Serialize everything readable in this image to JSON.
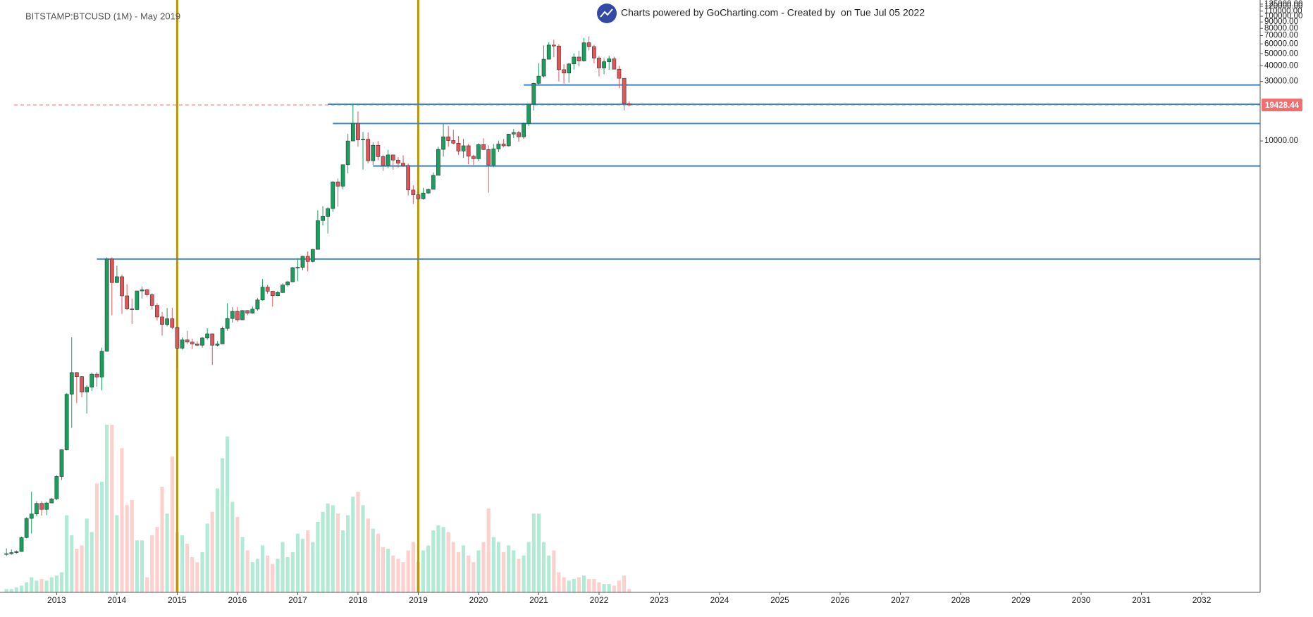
{
  "chart_data": {
    "type": "candlestick",
    "title": "BITSTAMP:BTCUSD (1M) - May 2019",
    "header": "Charts powered by GoCharting.com - Created by  on Tue Jul 05 2022",
    "log_scale": true,
    "grid": false,
    "x": [
      2012.167,
      2012.25,
      2012.333,
      2012.417,
      2012.5,
      2012.583,
      2012.667,
      2012.75,
      2012.833,
      2012.917,
      2013,
      2013.083,
      2013.167,
      2013.25,
      2013.333,
      2013.417,
      2013.5,
      2013.583,
      2013.667,
      2013.75,
      2013.833,
      2013.917,
      2014,
      2014.083,
      2014.167,
      2014.25,
      2014.333,
      2014.417,
      2014.5,
      2014.583,
      2014.667,
      2014.75,
      2014.833,
      2014.917,
      2015,
      2015.083,
      2015.167,
      2015.25,
      2015.333,
      2015.417,
      2015.5,
      2015.583,
      2015.667,
      2015.75,
      2015.833,
      2015.917,
      2016,
      2016.083,
      2016.167,
      2016.25,
      2016.333,
      2016.417,
      2016.5,
      2016.583,
      2016.667,
      2016.75,
      2016.833,
      2016.917,
      2017,
      2017.083,
      2017.167,
      2017.25,
      2017.333,
      2017.417,
      2017.5,
      2017.583,
      2017.667,
      2017.75,
      2017.833,
      2017.917,
      2018,
      2018.083,
      2018.167,
      2018.25,
      2018.333,
      2018.417,
      2018.5,
      2018.583,
      2018.667,
      2018.75,
      2018.833,
      2018.917,
      2019,
      2019.083,
      2019.167,
      2019.25,
      2019.333,
      2019.417,
      2019.5,
      2019.583,
      2019.667,
      2019.75,
      2019.833,
      2019.917,
      2020,
      2020.083,
      2020.167,
      2020.25,
      2020.333,
      2020.417,
      2020.5,
      2020.583,
      2020.667,
      2020.75,
      2020.833,
      2020.917,
      2021,
      2021.083,
      2021.167,
      2021.25,
      2021.333,
      2021.417,
      2021.5,
      2021.583,
      2021.667,
      2021.75,
      2021.833,
      2021.917,
      2022,
      2022.083,
      2022.167,
      2022.25,
      2022.333,
      2022.417,
      2022.5
    ],
    "open": [
      4.9,
      4.9,
      5.0,
      5.1,
      6.6,
      9.4,
      10.2,
      12.4,
      11.1,
      12.5,
      13.5,
      20.4,
      33.4,
      93,
      139,
      129,
      97,
      106,
      135,
      128,
      206,
      1129,
      732,
      815,
      573,
      450,
      445,
      627,
      640,
      585,
      480,
      388,
      338,
      375,
      320,
      218,
      254,
      244,
      236,
      230,
      263,
      284,
      230,
      236,
      314,
      377,
      430,
      368,
      437,
      416,
      448,
      531,
      673,
      624,
      575,
      609,
      700,
      742,
      964,
      970,
      1190,
      1080,
      1350,
      2300,
      2480,
      2870,
      4700,
      4340,
      6450,
      10000,
      13850,
      10200,
      10330,
      6930,
      9240,
      7490,
      6390,
      7730,
      7030,
      6630,
      6370,
      4040,
      3700,
      3440,
      3820,
      4100,
      5300,
      8560,
      10800,
      10080,
      9600,
      8300,
      9150,
      7540,
      7200,
      9350,
      8540,
      6420,
      8630,
      9450,
      9140,
      11350,
      11650,
      10780,
      13800,
      19700,
      28990,
      33100,
      45240,
      58800,
      57750,
      37300,
      35040,
      41460,
      47100,
      43820,
      61300,
      57000,
      46200,
      38480,
      43180,
      45540,
      37640,
      31800,
      19930
    ],
    "high": [
      5.4,
      5.3,
      5.2,
      6.7,
      9.6,
      15.4,
      12.9,
      12.9,
      12.8,
      13.7,
      20.9,
      33.5,
      95,
      266,
      140,
      130,
      110,
      139,
      140,
      220,
      1163,
      1163,
      1000,
      850,
      710,
      545,
      630,
      680,
      650,
      600,
      500,
      425,
      458,
      460,
      320,
      265,
      300,
      260,
      248,
      268,
      315,
      285,
      248,
      325,
      500,
      465,
      465,
      440,
      440,
      470,
      550,
      780,
      700,
      625,
      630,
      720,
      755,
      975,
      1150,
      1200,
      1300,
      1360,
      2780,
      3000,
      2950,
      4750,
      5000,
      6450,
      11400,
      19666,
      17250,
      11800,
      11700,
      9750,
      9990,
      7770,
      8500,
      7760,
      7410,
      7680,
      6580,
      4400,
      4100,
      4200,
      4150,
      5600,
      9000,
      13880,
      13200,
      12300,
      10950,
      10370,
      9500,
      7750,
      9580,
      10500,
      9190,
      9450,
      10070,
      10380,
      11420,
      12470,
      12070,
      14100,
      19860,
      29300,
      41950,
      58350,
      61800,
      64900,
      59600,
      41300,
      42300,
      50500,
      52900,
      67000,
      69000,
      59100,
      47990,
      45800,
      48200,
      47450,
      40000,
      31900,
      20750
    ],
    "low": [
      4.7,
      4.8,
      4.9,
      5.1,
      6.5,
      7.1,
      9.8,
      9.9,
      10.0,
      12.5,
      13.2,
      19.1,
      33,
      50,
      79,
      88,
      65,
      99,
      107,
      100,
      205,
      400,
      725,
      410,
      440,
      340,
      440,
      545,
      565,
      445,
      365,
      275,
      325,
      310,
      152,
      212,
      235,
      215,
      226,
      220,
      255,
      160,
      225,
      235,
      300,
      350,
      355,
      365,
      400,
      412,
      435,
      525,
      595,
      470,
      570,
      605,
      680,
      740,
      750,
      920,
      900,
      1060,
      1350,
      2100,
      1810,
      2700,
      2970,
      4100,
      5500,
      10000,
      9000,
      5900,
      6600,
      6420,
      7020,
      5750,
      6070,
      5880,
      6100,
      6200,
      3650,
      3120,
      3350,
      3380,
      3780,
      4080,
      5300,
      7500,
      9000,
      9400,
      7750,
      7300,
      6500,
      6430,
      6870,
      8450,
      3850,
      6150,
      8120,
      8950,
      8990,
      10540,
      9850,
      10400,
      13200,
      17600,
      28100,
      32300,
      45000,
      47000,
      30000,
      28800,
      29300,
      37400,
      39600,
      43300,
      53250,
      42000,
      32900,
      34300,
      37200,
      37600,
      26500,
      17600,
      18960
    ],
    "close": [
      4.9,
      5.0,
      5.1,
      6.6,
      9.4,
      10.2,
      12.4,
      11.1,
      12.5,
      13.5,
      20.4,
      33.4,
      93,
      139,
      129,
      97,
      106,
      135,
      128,
      206,
      1129,
      732,
      815,
      573,
      450,
      445,
      627,
      640,
      585,
      480,
      388,
      338,
      375,
      320,
      218,
      254,
      244,
      236,
      230,
      263,
      284,
      230,
      236,
      314,
      377,
      430,
      368,
      437,
      416,
      448,
      531,
      673,
      624,
      575,
      609,
      700,
      742,
      964,
      970,
      1190,
      1080,
      1350,
      2300,
      2480,
      2870,
      4700,
      4340,
      6450,
      10000,
      13850,
      10200,
      10330,
      6930,
      9240,
      7490,
      6390,
      7730,
      7030,
      6630,
      6370,
      4040,
      3700,
      3440,
      3820,
      4100,
      5300,
      8560,
      10800,
      10080,
      9600,
      8300,
      9150,
      7540,
      7200,
      9350,
      8540,
      6420,
      8630,
      9450,
      9140,
      11350,
      11650,
      10780,
      13800,
      19700,
      28990,
      33100,
      45240,
      58800,
      57750,
      37300,
      35040,
      41460,
      47100,
      43820,
      61300,
      57000,
      46200,
      38480,
      43180,
      45540,
      37640,
      31800,
      19930,
      19428.44
    ],
    "volume": [
      2,
      2,
      3,
      4,
      6,
      9,
      7,
      8,
      7,
      9,
      10,
      12,
      46,
      34,
      26,
      28,
      44,
      36,
      65,
      66,
      100,
      100,
      46,
      86,
      52,
      55,
      31,
      31,
      9,
      34,
      39,
      63,
      47,
      81,
      36,
      34,
      29,
      21,
      18,
      24,
      41,
      48,
      62,
      80,
      93,
      54,
      45,
      33,
      25,
      18,
      20,
      28,
      22,
      17,
      20,
      30,
      21,
      24,
      35,
      32,
      37,
      30,
      42,
      48,
      53,
      52,
      47,
      37,
      46,
      57,
      60,
      52,
      44,
      38,
      35,
      27,
      26,
      22,
      20,
      18,
      25,
      30,
      18,
      25,
      28,
      37,
      40,
      39,
      36,
      30,
      24,
      28,
      22,
      18,
      25,
      30,
      50,
      33,
      30,
      24,
      28,
      25,
      20,
      22,
      30,
      47,
      47,
      30,
      22,
      25,
      12,
      9,
      7,
      8,
      9,
      10,
      8,
      8,
      6,
      5,
      5,
      4,
      7,
      10,
      2
    ],
    "volume_lim": [
      0,
      100
    ],
    "up_color": "#17a05d",
    "down_color": "#e0555a",
    "up_volume_color": "#b3ead5",
    "down_volume_color": "#fcd0cd",
    "xlim": [
      2012.06,
      2032.97
    ],
    "xticks": [
      2013,
      2014,
      2015,
      2016,
      2017,
      2018,
      2019,
      2020,
      2021,
      2022,
      2023,
      2024,
      2025,
      2026,
      2027,
      2028,
      2029,
      2030,
      2031,
      2032
    ],
    "ylim": [
      2.4,
      135000
    ],
    "yticks": [
      {
        "value": 125000,
        "label": "125000.00"
      },
      {
        "value": 120000,
        "label": "120000.00"
      },
      {
        "value": 110000,
        "label": "110000.00"
      },
      {
        "value": 100000,
        "label": "100000.00"
      },
      {
        "value": 90000,
        "label": "90000.00"
      },
      {
        "value": 80000,
        "label": "80000.00"
      },
      {
        "value": 70000,
        "label": "70000.00"
      },
      {
        "value": 60000,
        "label": "60000.00"
      },
      {
        "value": 50000,
        "label": "50000.00"
      },
      {
        "value": 40000,
        "label": "40000.00"
      },
      {
        "value": 30000,
        "label": "30000.00"
      },
      {
        "value": 10000,
        "label": "10000.00"
      }
    ],
    "hlines": [
      {
        "value": 28100,
        "from": 2020.75
      },
      {
        "value": 19700,
        "from": 2017.5
      },
      {
        "value": 13800,
        "from": 2017.583
      },
      {
        "value": 6300,
        "from": 2018.25
      },
      {
        "value": 1130,
        "from": 2013.667
      }
    ],
    "hline_color": "#3a84c9",
    "vlines": [
      2015,
      2019
    ],
    "vline_color": "#b8960c",
    "price_line_color": "#f07070"
  }
}
